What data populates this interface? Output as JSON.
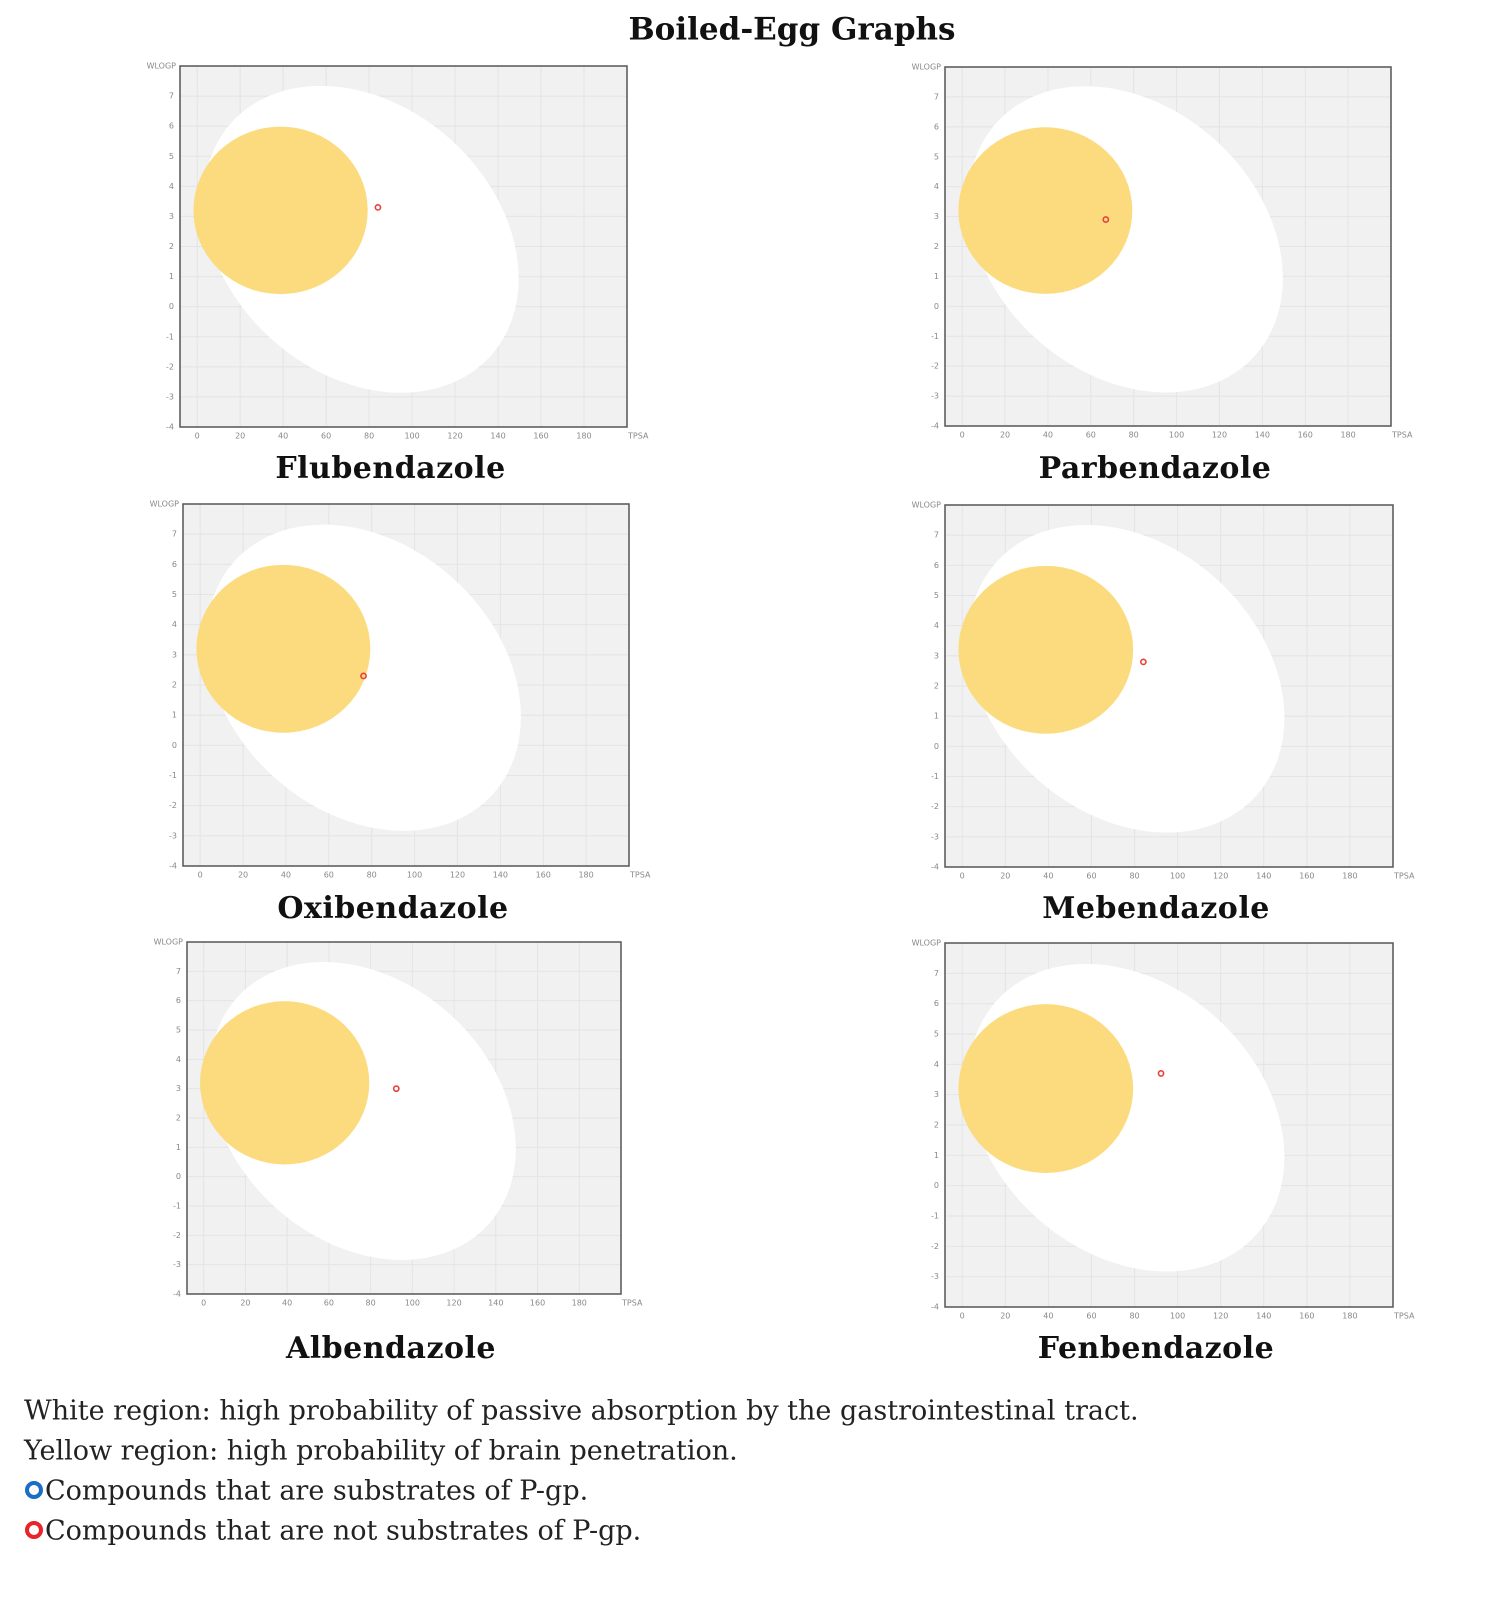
{
  "title": "Boiled-Egg Graphs",
  "notes": [
    "White region: high probability of passive absorption by the gastrointestinal tract.",
    "Yellow region: high probability of brain penetration."
  ],
  "legend": [
    {
      "label": "Compounds that are substrates of P-gp.",
      "color": "#1a6fc4"
    },
    {
      "label": "Compounds that are not substrates of P-gp.",
      "color": "#e8232a"
    }
  ],
  "chart_data": [
    {
      "type": "scatter",
      "title": "Flubendazole",
      "x_label": "TPSA",
      "y_label": "WLOGP",
      "xlim": [
        -8,
        200
      ],
      "ylim": [
        -4,
        8
      ],
      "xticks": [
        0,
        20,
        40,
        60,
        80,
        100,
        120,
        140,
        160,
        180
      ],
      "yticks": [
        -4,
        -3,
        -2,
        -1,
        0,
        1,
        2,
        3,
        4,
        5,
        6,
        7
      ],
      "grid": true,
      "series": [
        {
          "color": "#e8413c",
          "x": [
            84.1
          ],
          "values": [
            3.3
          ]
        }
      ]
    },
    {
      "type": "scatter",
      "title": "Parbendazole",
      "x_label": "TPSA",
      "y_label": "WLOGP",
      "xlim": [
        -8,
        200
      ],
      "ylim": [
        -4,
        8
      ],
      "xticks": [
        0,
        20,
        40,
        60,
        80,
        100,
        120,
        140,
        160,
        180
      ],
      "yticks": [
        -4,
        -3,
        -2,
        -1,
        0,
        1,
        2,
        3,
        4,
        5,
        6,
        7
      ],
      "grid": true,
      "series": [
        {
          "color": "#e8413c",
          "x": [
            67.0
          ],
          "values": [
            2.9
          ]
        }
      ]
    },
    {
      "type": "scatter",
      "title": "Oxibendazole",
      "x_label": "TPSA",
      "y_label": "WLOGP",
      "xlim": [
        -8,
        200
      ],
      "ylim": [
        -4,
        8
      ],
      "xticks": [
        0,
        20,
        40,
        60,
        80,
        100,
        120,
        140,
        160,
        180
      ],
      "yticks": [
        -4,
        -3,
        -2,
        -1,
        0,
        1,
        2,
        3,
        4,
        5,
        6,
        7
      ],
      "grid": true,
      "series": [
        {
          "color": "#e8413c",
          "x": [
            76.2
          ],
          "values": [
            2.3
          ]
        }
      ]
    },
    {
      "type": "scatter",
      "title": "Mebendazole",
      "x_label": "TPSA",
      "y_label": "WLOGP",
      "xlim": [
        -8,
        200
      ],
      "ylim": [
        -4,
        8
      ],
      "xticks": [
        0,
        20,
        40,
        60,
        80,
        100,
        120,
        140,
        160,
        180
      ],
      "yticks": [
        -4,
        -3,
        -2,
        -1,
        0,
        1,
        2,
        3,
        4,
        5,
        6,
        7
      ],
      "grid": true,
      "series": [
        {
          "color": "#e8413c",
          "x": [
            84.1
          ],
          "values": [
            2.8
          ]
        }
      ]
    },
    {
      "type": "scatter",
      "title": "Albendazole",
      "x_label": "TPSA",
      "y_label": "WLOGP",
      "xlim": [
        -8,
        200
      ],
      "ylim": [
        -4,
        8
      ],
      "xticks": [
        0,
        20,
        40,
        60,
        80,
        100,
        120,
        140,
        160,
        180
      ],
      "yticks": [
        -4,
        -3,
        -2,
        -1,
        0,
        1,
        2,
        3,
        4,
        5,
        6,
        7
      ],
      "grid": true,
      "series": [
        {
          "color": "#e8413c",
          "x": [
            92.3
          ],
          "values": [
            3.0
          ]
        }
      ]
    },
    {
      "type": "scatter",
      "title": "Fenbendazole",
      "x_label": "TPSA",
      "y_label": "WLOGP",
      "xlim": [
        -8,
        200
      ],
      "ylim": [
        -4,
        8
      ],
      "xticks": [
        0,
        20,
        40,
        60,
        80,
        100,
        120,
        140,
        160,
        180
      ],
      "yticks": [
        -4,
        -3,
        -2,
        -1,
        0,
        1,
        2,
        3,
        4,
        5,
        6,
        7
      ],
      "grid": true,
      "series": [
        {
          "color": "#e8413c",
          "x": [
            92.3
          ],
          "values": [
            3.7
          ]
        }
      ]
    }
  ]
}
